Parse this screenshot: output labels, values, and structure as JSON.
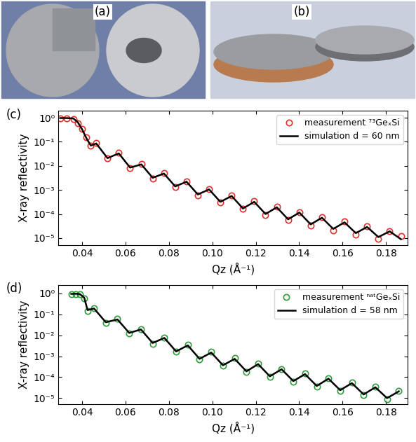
{
  "images": [
    {
      "label": "(a)"
    },
    {
      "label": "(b)"
    }
  ],
  "chart_data": [
    {
      "type": "line",
      "annotations": [
        "(c)"
      ],
      "x_label": "Qz (Å⁻¹)",
      "y_label": "X-ray reflectivity",
      "log": "y",
      "legend": "upper right",
      "xlim": [
        0.029,
        0.19
      ],
      "ylim": [
        5e-06,
        2
      ],
      "xticks": [
        0.04,
        0.06,
        0.08,
        {
          "value": 0.1,
          "label": "0.10"
        },
        0.12,
        0.14,
        0.16,
        0.18
      ],
      "yticks": [
        {
          "value": 1e-05,
          "label": "10⁻⁵"
        },
        {
          "value": 0.0001,
          "label": "10⁻⁴"
        },
        {
          "value": 0.001,
          "label": "10⁻³"
        },
        {
          "value": 0.01,
          "label": "10⁻²"
        },
        {
          "value": 0.1,
          "label": "10⁻¹"
        },
        {
          "value": 1,
          "label": "10⁰"
        }
      ],
      "series": [
        {
          "name": "measurement ⁷³GeₓSi",
          "color": "#e0302a",
          "marker": "circle",
          "line_style": "none",
          "x": [
            0.03,
            0.033,
            0.036,
            0.038,
            0.04,
            0.042,
            0.044,
            0.0465,
            0.0517,
            0.0569,
            0.0621,
            0.0673,
            0.0725,
            0.0777,
            0.0829,
            0.0881,
            0.0933,
            0.0985,
            0.1037,
            0.1089,
            0.1141,
            0.1193,
            0.1245,
            0.1297,
            0.1349,
            0.1401,
            0.1453,
            0.1505,
            0.1557,
            0.1609,
            0.1661,
            0.1713,
            0.1765,
            0.1817,
            0.1869
          ],
          "values": [
            0.95,
            0.95,
            0.9,
            0.6,
            0.35,
            0.15,
            0.07,
            0.09,
            0.02,
            0.035,
            0.008,
            0.012,
            0.003,
            0.005,
            0.0013,
            0.0023,
            0.0006,
            0.0011,
            0.0003,
            0.0006,
            0.00016,
            0.00034,
            9e-05,
            0.0002,
            5.5e-05,
            0.00012,
            3.3e-05,
            7.5e-05,
            2.1e-05,
            4.8e-05,
            1.4e-05,
            3e-05,
            9e-06,
            2e-05,
            1.2e-05
          ]
        },
        {
          "name": "simulation d = 60 nm",
          "color": "#000000",
          "marker": "none",
          "line_style": "solid",
          "x": [
            0.03,
            0.033,
            0.036,
            0.038,
            0.04,
            0.042,
            0.044,
            0.0465,
            0.0517,
            0.0569,
            0.0621,
            0.0673,
            0.0725,
            0.0777,
            0.0829,
            0.0881,
            0.0933,
            0.0985,
            0.1037,
            0.1089,
            0.1141,
            0.1193,
            0.1245,
            0.1297,
            0.1349,
            0.1401,
            0.1453,
            0.1505,
            0.1557,
            0.1609,
            0.1661,
            0.1713,
            0.1765,
            0.1817,
            0.1869
          ],
          "values": [
            0.97,
            0.97,
            0.93,
            0.65,
            0.33,
            0.14,
            0.07,
            0.085,
            0.021,
            0.033,
            0.0085,
            0.0115,
            0.0032,
            0.0048,
            0.0014,
            0.0022,
            0.00065,
            0.00105,
            0.00032,
            0.00056,
            0.00017,
            0.00032,
            0.0001,
            0.00019,
            6e-05,
            0.000115,
            3.7e-05,
            7e-05,
            2.4e-05,
            4.5e-05,
            1.6e-05,
            2.9e-05,
            1.1e-05,
            1.9e-05,
            9e-06
          ]
        }
      ]
    },
    {
      "type": "line",
      "annotations": [
        "(d)"
      ],
      "x_label": "Qz (Å⁻¹)",
      "y_label": "X-ray reflectivity",
      "log": "y",
      "legend": "upper right",
      "xlim": [
        0.029,
        0.19
      ],
      "ylim": [
        5e-06,
        2.5
      ],
      "xticks": [
        0.04,
        0.06,
        0.08,
        {
          "value": 0.1,
          "label": "0.10"
        },
        0.12,
        0.14,
        0.16,
        0.18
      ],
      "yticks": [
        {
          "value": 1e-05,
          "label": "10⁻⁵"
        },
        {
          "value": 0.0001,
          "label": "10⁻⁴"
        },
        {
          "value": 0.001,
          "label": "10⁻³"
        },
        {
          "value": 0.01,
          "label": "10⁻²"
        },
        {
          "value": 0.1,
          "label": "10⁻¹"
        },
        {
          "value": 1,
          "label": "10⁰"
        }
      ],
      "series": [
        {
          "name": "measurement ⁿᵃᵗGeₓSi",
          "color": "#2e9a3a",
          "marker": "circle",
          "line_style": "none",
          "x": [
            0.035,
            0.037,
            0.039,
            0.041,
            0.0425,
            0.0455,
            0.0509,
            0.0563,
            0.0617,
            0.0671,
            0.0725,
            0.0779,
            0.0833,
            0.0887,
            0.0941,
            0.0995,
            0.1049,
            0.1103,
            0.1157,
            0.1211,
            0.1265,
            0.1319,
            0.1373,
            0.1427,
            0.1481,
            0.1535,
            0.1589,
            0.1643,
            0.1697,
            0.1751,
            0.1805,
            0.1859
          ],
          "values": [
            0.9,
            0.95,
            0.9,
            0.6,
            0.15,
            0.2,
            0.04,
            0.06,
            0.012,
            0.02,
            0.004,
            0.008,
            0.0016,
            0.0035,
            0.0007,
            0.0016,
            0.00035,
            0.0008,
            0.00018,
            0.00045,
            0.0001,
            0.00025,
            6e-05,
            0.00015,
            3.5e-05,
            9e-05,
            2.2e-05,
            5.5e-05,
            1.4e-05,
            3.5e-05,
            9e-06,
            2.2e-05
          ]
        },
        {
          "name": "simulation d = 58 nm",
          "color": "#000000",
          "marker": "none",
          "line_style": "solid",
          "x": [
            0.035,
            0.037,
            0.039,
            0.041,
            0.0425,
            0.0455,
            0.0509,
            0.0563,
            0.0617,
            0.0671,
            0.0725,
            0.0779,
            0.0833,
            0.0887,
            0.0941,
            0.0995,
            0.1049,
            0.1103,
            0.1157,
            0.1211,
            0.1265,
            0.1319,
            0.1373,
            0.1427,
            0.1481,
            0.1535,
            0.1589,
            0.1643,
            0.1697,
            0.1751,
            0.1805,
            0.1859
          ],
          "values": [
            0.95,
            0.97,
            0.93,
            0.62,
            0.16,
            0.19,
            0.042,
            0.057,
            0.013,
            0.019,
            0.0043,
            0.0075,
            0.0017,
            0.0033,
            0.00075,
            0.0015,
            0.00037,
            0.00075,
            0.00019,
            0.00042,
            0.00011,
            0.00024,
            6.5e-05,
            0.00014,
            3.8e-05,
            8.5e-05,
            2.4e-05,
            5.2e-05,
            1.5e-05,
            3.3e-05,
            1e-05,
            2.1e-05
          ]
        }
      ]
    }
  ]
}
